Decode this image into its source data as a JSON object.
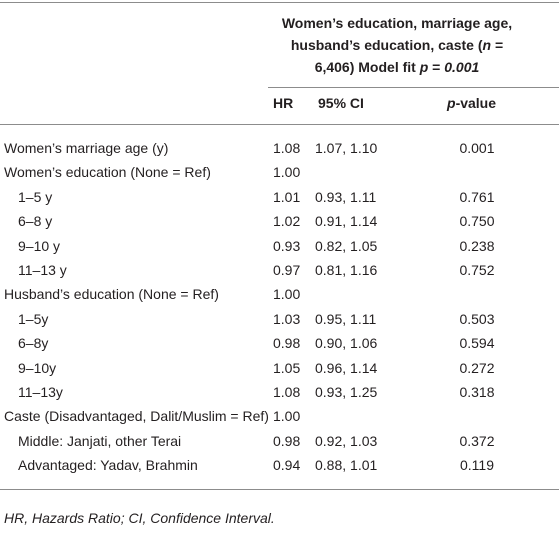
{
  "header": {
    "title_parts": [
      "Women’s education, marriage age, husband’s education, caste",
      "(",
      "n",
      " = 6,406) Model fit ",
      "p",
      " = ",
      "0.001"
    ]
  },
  "table": {
    "columns": [
      "HR",
      "95% CI"
    ],
    "pvalue_header": [
      "p",
      "-value"
    ],
    "rows": [
      {
        "label": "Women’s marriage age (y)",
        "indent": false,
        "hr": "1.08",
        "ci": "1.07, 1.10",
        "p": "0.001"
      },
      {
        "label": "Women’s education (None = Ref)",
        "indent": false,
        "hr": "1.00",
        "ci": null,
        "p": null
      },
      {
        "label": "1–5 y",
        "indent": true,
        "hr": "1.01",
        "ci": "0.93, 1.11",
        "p": "0.761"
      },
      {
        "label": "6–8 y",
        "indent": true,
        "hr": "1.02",
        "ci": "0.91, 1.14",
        "p": "0.750"
      },
      {
        "label": "9–10 y",
        "indent": true,
        "hr": "0.93",
        "ci": "0.82, 1.05",
        "p": "0.238"
      },
      {
        "label": "11–13 y",
        "indent": true,
        "hr": "0.97",
        "ci": "0.81, 1.16",
        "p": "0.752"
      },
      {
        "label": "Husband’s education (None = Ref)",
        "indent": false,
        "hr": "1.00",
        "ci": null,
        "p": null
      },
      {
        "label": "1–5y",
        "indent": true,
        "hr": "1.03",
        "ci": "0.95, 1.11",
        "p": "0.503"
      },
      {
        "label": "6–8y",
        "indent": true,
        "hr": "0.98",
        "ci": "0.90, 1.06",
        "p": "0.594"
      },
      {
        "label": "9–10y",
        "indent": true,
        "hr": "1.05",
        "ci": "0.96, 1.14",
        "p": "0.272"
      },
      {
        "label": "11–13y",
        "indent": true,
        "hr": "1.08",
        "ci": "0.93, 1.25",
        "p": "0.318"
      },
      {
        "label": "Caste (Disadvantaged, Dalit/Muslim = Ref)",
        "indent": false,
        "hr": "1.00",
        "ci": null,
        "p": null
      },
      {
        "label": "Middle: Janjati, other Terai",
        "indent": true,
        "hr": "0.98",
        "ci": "0.92, 1.03",
        "p": "0.372"
      },
      {
        "label": "Advantaged: Yadav, Brahmin",
        "indent": true,
        "hr": "0.94",
        "ci": "0.88, 1.01",
        "p": "0.119"
      }
    ]
  },
  "footnote": "HR, Hazards Ratio; CI, Confidence Interval."
}
